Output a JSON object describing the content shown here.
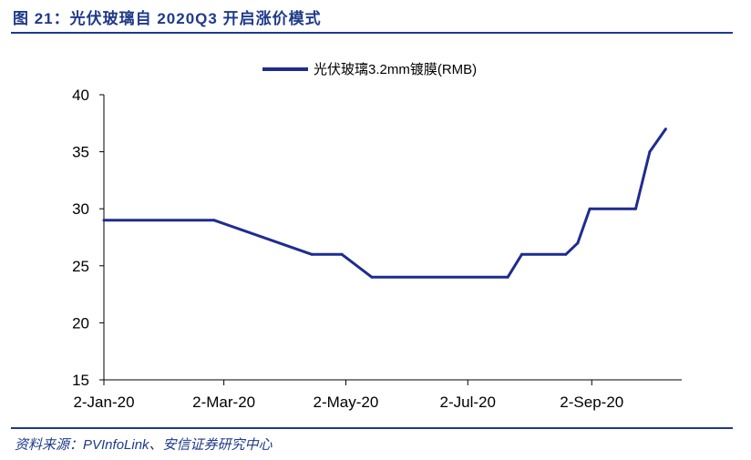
{
  "header": {
    "title": "图 21：光伏玻璃自 2020Q3 开启涨价模式"
  },
  "footer": {
    "source": "资料来源：PVInfoLink、安信证券研究中心"
  },
  "colors": {
    "accent": "#1f3a8a",
    "series": "#1f2c8f",
    "axis": "#000000"
  },
  "chart_data": {
    "type": "line",
    "title": "",
    "xlabel": "",
    "ylabel": "",
    "ylim": [
      15,
      40
    ],
    "yticks": [
      15,
      20,
      25,
      30,
      35,
      40
    ],
    "xlim": [
      "2020-01-02",
      "2020-10-17"
    ],
    "xticks": [
      {
        "date": "2020-01-02",
        "label": "2-Jan-20"
      },
      {
        "date": "2020-03-02",
        "label": "2-Mar-20"
      },
      {
        "date": "2020-05-02",
        "label": "2-May-20"
      },
      {
        "date": "2020-07-02",
        "label": "2-Jul-20"
      },
      {
        "date": "2020-09-02",
        "label": "2-Sep-20"
      }
    ],
    "grid": false,
    "legend_position": "top-center",
    "series": [
      {
        "name": "光伏玻璃3.2mm镀膜(RMB)",
        "points": [
          {
            "x": "2020-01-02",
            "y": 29
          },
          {
            "x": "2020-02-26",
            "y": 29
          },
          {
            "x": "2020-04-15",
            "y": 26
          },
          {
            "x": "2020-04-30",
            "y": 26
          },
          {
            "x": "2020-05-15",
            "y": 24
          },
          {
            "x": "2020-07-22",
            "y": 24
          },
          {
            "x": "2020-07-29",
            "y": 26
          },
          {
            "x": "2020-08-20",
            "y": 26
          },
          {
            "x": "2020-08-26",
            "y": 27
          },
          {
            "x": "2020-09-01",
            "y": 30
          },
          {
            "x": "2020-09-24",
            "y": 30
          },
          {
            "x": "2020-10-01",
            "y": 35
          },
          {
            "x": "2020-10-09",
            "y": 37
          }
        ]
      }
    ]
  }
}
